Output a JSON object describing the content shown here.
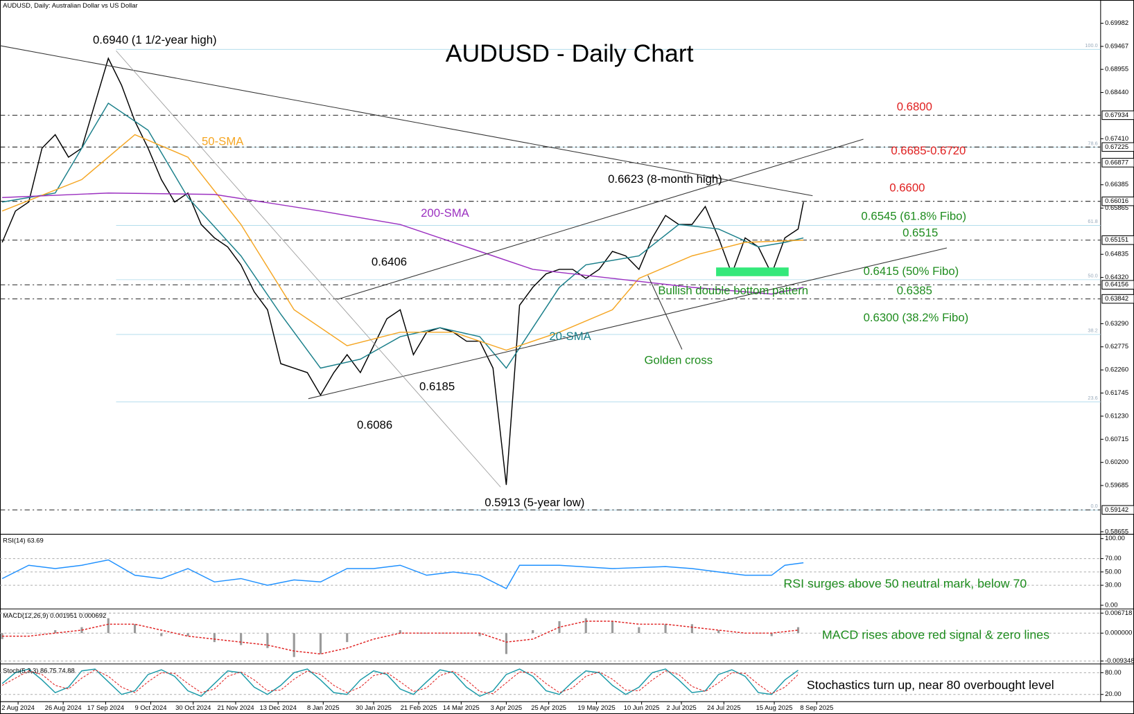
{
  "chart_data": [
    {
      "type": "line",
      "header": "AUDUSD, Daily:  Australian Dollar vs US Dollar",
      "title": "AUDUSD - Daily Chart",
      "xlim": [
        0,
        414
      ],
      "ylim": [
        0.586,
        0.705
      ],
      "xticks": [
        {
          "value": 6,
          "label": "2 Aug 2024"
        },
        {
          "value": 23,
          "label": "26 Aug 2024"
        },
        {
          "value": 39,
          "label": "17 Sep 2024"
        },
        {
          "value": 56,
          "label": "9 Oct 2024"
        },
        {
          "value": 72,
          "label": "30 Oct 2024"
        },
        {
          "value": 88,
          "label": "21 Nov 2024"
        },
        {
          "value": 104,
          "label": "13 Dec 2024"
        },
        {
          "value": 121,
          "label": "8 Jan 2025"
        },
        {
          "value": 140,
          "label": "30 Jan 2025"
        },
        {
          "value": 157,
          "label": "21 Feb 2025"
        },
        {
          "value": 173,
          "label": "14 Mar 2025"
        },
        {
          "value": 190,
          "label": "3 Apr 2025"
        },
        {
          "value": 206,
          "label": "25 Apr 2025"
        },
        {
          "value": 224,
          "label": "19 May 2025"
        },
        {
          "value": 241,
          "label": "10 Jun 2025"
        },
        {
          "value": 256,
          "label": "2 Jul 2025"
        },
        {
          "value": 272,
          "label": "24 Jul 2025"
        },
        {
          "value": 291,
          "label": "15 Aug 2025"
        },
        {
          "value": 307,
          "label": "8 Sep 2025"
        }
      ],
      "yticks": [
        0.69982,
        0.69467,
        0.68955,
        {
          "value": 0.6844,
          "label": "0.68440"
        },
        {
          "value": 0.6741,
          "label": "0.67410"
        },
        0.66385,
        0.65865,
        0.64835,
        {
          "value": 0.6432,
          "label": "0.64320"
        },
        {
          "value": 0.6329,
          "label": "0.63290"
        },
        0.62775,
        {
          "value": 0.6226,
          "label": "0.62260"
        },
        0.61745,
        {
          "value": 0.6123,
          "label": "0.61230"
        },
        0.60715,
        {
          "value": 0.602,
          "label": "0.60200"
        },
        0.59685,
        0.58655
      ],
      "levels": [
        0.67934,
        0.67225,
        0.66877,
        0.66016,
        0.65151,
        0.64156,
        0.63842,
        0.59142
      ],
      "fibo": [
        {
          "value": 0.694,
          "label": "100.0"
        },
        {
          "value": 0.6722,
          "label": "78.6"
        },
        {
          "value": 0.6548,
          "label": "61.8"
        },
        {
          "value": 0.6427,
          "label": "50.0"
        },
        {
          "value": 0.6305,
          "label": "38.2"
        },
        {
          "value": 0.6155,
          "label": "23.6"
        },
        {
          "value": 0.5914,
          "label": "0.0"
        }
      ],
      "series": [
        {
          "color": "#000000",
          "x": [
            0,
            5,
            10,
            15,
            20,
            25,
            30,
            35,
            40,
            45,
            50,
            55,
            60,
            65,
            70,
            75,
            80,
            85,
            90,
            95,
            100,
            105,
            110,
            115,
            120,
            125,
            130,
            135,
            140,
            145,
            150,
            155,
            160,
            165,
            170,
            175,
            180,
            185,
            190,
            195,
            200,
            205,
            210,
            215,
            220,
            225,
            230,
            235,
            240,
            245,
            250,
            255,
            260,
            265,
            270,
            275,
            280,
            285,
            290,
            295,
            300,
            302
          ],
          "values": [
            0.651,
            0.658,
            0.66,
            0.672,
            0.675,
            0.67,
            0.672,
            0.682,
            0.692,
            0.686,
            0.678,
            0.672,
            0.665,
            0.66,
            0.662,
            0.655,
            0.652,
            0.65,
            0.646,
            0.64,
            0.636,
            0.624,
            0.623,
            0.622,
            0.617,
            0.622,
            0.626,
            0.622,
            0.628,
            0.634,
            0.636,
            0.626,
            0.631,
            0.632,
            0.631,
            0.629,
            0.629,
            0.623,
            0.597,
            0.637,
            0.641,
            0.644,
            0.645,
            0.645,
            0.643,
            0.645,
            0.649,
            0.648,
            0.645,
            0.652,
            0.657,
            0.655,
            0.655,
            0.659,
            0.652,
            0.644,
            0.652,
            0.65,
            0.644,
            0.652,
            0.654,
            0.66
          ]
        },
        {
          "name": "20-SMA",
          "color": "#1a7f8a",
          "x": [
            0,
            20,
            40,
            55,
            70,
            90,
            105,
            120,
            135,
            150,
            165,
            180,
            190,
            200,
            210,
            220,
            240,
            255,
            270,
            285,
            295,
            302
          ],
          "values": [
            0.66,
            0.662,
            0.682,
            0.676,
            0.661,
            0.648,
            0.635,
            0.623,
            0.625,
            0.63,
            0.632,
            0.63,
            0.623,
            0.632,
            0.641,
            0.646,
            0.648,
            0.655,
            0.654,
            0.65,
            0.651,
            0.652
          ]
        },
        {
          "name": "50-SMA",
          "color": "#f5a623",
          "x": [
            0,
            30,
            50,
            70,
            90,
            110,
            130,
            150,
            170,
            190,
            210,
            230,
            240,
            260,
            280,
            302
          ],
          "values": [
            0.658,
            0.665,
            0.675,
            0.67,
            0.655,
            0.636,
            0.628,
            0.631,
            0.631,
            0.627,
            0.631,
            0.636,
            0.643,
            0.648,
            0.651,
            0.6515
          ]
        },
        {
          "name": "200-SMA",
          "color": "#9b30c0",
          "x": [
            0,
            40,
            80,
            120,
            150,
            180,
            200,
            230,
            260,
            290,
            302
          ],
          "values": [
            0.661,
            0.662,
            0.6617,
            0.658,
            0.655,
            0.649,
            0.645,
            0.643,
            0.641,
            0.6395,
            0.641
          ]
        }
      ],
      "annotations": [
        {
          "text": "0.6940 (1 1/2-year high)",
          "color": "#000000"
        },
        {
          "text": "0.6623 (8-month high)",
          "color": "#000000"
        },
        {
          "text": "0.6406",
          "color": "#000000"
        },
        {
          "text": "0.6185",
          "color": "#000000"
        },
        {
          "text": "0.6086",
          "color": "#000000"
        },
        {
          "text": "0.5913 (5-year low)",
          "color": "#000000"
        },
        {
          "text": "Golden cross",
          "color": "#1e8c1e"
        },
        {
          "text": "Bullish double bottom pattern",
          "color": "#1e8c1e"
        },
        {
          "text": "0.6800",
          "color": "#e02020"
        },
        {
          "text": "0.6685-0.6720",
          "color": "#e02020"
        },
        {
          "text": "0.6600",
          "color": "#e02020"
        },
        {
          "text": "0.6545 (61.8% Fibo)",
          "color": "#1e8c1e"
        },
        {
          "text": "0.6515",
          "color": "#1e8c1e"
        },
        {
          "text": "0.6415 (50% Fibo)",
          "color": "#1e8c1e"
        },
        {
          "text": "0.6385",
          "color": "#1e8c1e"
        },
        {
          "text": "0.6300 (38.2% Fibo)",
          "color": "#1e8c1e"
        }
      ]
    },
    {
      "type": "line",
      "label": "RSI(14) 63.69",
      "ylim": [
        0,
        100
      ],
      "yticks": [
        {
          "value": 100,
          "label": "100.00"
        },
        {
          "value": 70,
          "label": "70.00"
        },
        {
          "value": 50,
          "label": "50.00"
        },
        {
          "value": 30,
          "label": "30.00"
        },
        {
          "value": 0,
          "label": "0.00"
        }
      ],
      "series": [
        {
          "color": "#1e90ff",
          "x": [
            0,
            10,
            20,
            30,
            40,
            50,
            60,
            70,
            80,
            90,
            100,
            110,
            120,
            130,
            140,
            150,
            160,
            170,
            180,
            190,
            195,
            210,
            230,
            250,
            260,
            270,
            280,
            290,
            295,
            302
          ],
          "values": [
            40,
            60,
            55,
            60,
            68,
            45,
            40,
            55,
            35,
            40,
            30,
            38,
            35,
            55,
            55,
            60,
            45,
            50,
            45,
            25,
            60,
            60,
            55,
            58,
            55,
            50,
            45,
            45,
            60,
            63.69
          ]
        }
      ],
      "annotation": "RSI surges above 50 neutral mark, below 70"
    },
    {
      "type": "macd",
      "label": "MACD(12,26,9) 0.001951 0.000692",
      "ylim": [
        -0.0101,
        0.0074
      ],
      "yticks": [
        0.006718,
        {
          "value": 0,
          "label": "0.000000"
        },
        -0.009348
      ],
      "series": [
        {
          "color": "#9a9a9a",
          "x": [
            0,
            10,
            20,
            30,
            40,
            50,
            60,
            70,
            80,
            90,
            100,
            110,
            120,
            130,
            140,
            150,
            160,
            170,
            180,
            190,
            200,
            210,
            220,
            230,
            240,
            250,
            260,
            270,
            280,
            290,
            300
          ],
          "values": [
            -0.002,
            0,
            0.001,
            0.002,
            0.005,
            0.003,
            -0.001,
            -0.001,
            -0.003,
            -0.004,
            -0.005,
            -0.008,
            -0.007,
            -0.003,
            0,
            0.001,
            0,
            0,
            -0.001,
            -0.007,
            0.001,
            0.004,
            0.005,
            0.004,
            0.002,
            0.003,
            0.003,
            0.001,
            0,
            -0.001,
            0.002
          ]
        },
        {
          "color": "#e02020",
          "x": [
            0,
            10,
            20,
            30,
            40,
            50,
            60,
            70,
            80,
            90,
            100,
            110,
            120,
            130,
            140,
            150,
            160,
            170,
            180,
            190,
            200,
            210,
            220,
            230,
            240,
            250,
            260,
            270,
            280,
            290,
            300
          ],
          "values": [
            -0.001,
            -0.001,
            0,
            0.001,
            0.003,
            0.003,
            0.001,
            -0.001,
            -0.002,
            -0.003,
            -0.004,
            -0.006,
            -0.007,
            -0.005,
            -0.002,
            0,
            0,
            0,
            0,
            -0.003,
            -0.002,
            0.002,
            0.004,
            0.004,
            0.003,
            0.003,
            0.002,
            0.001,
            0,
            0,
            0.001
          ]
        }
      ],
      "annotation": "MACD rises above red signal & zero lines"
    },
    {
      "type": "stochastic",
      "label": "Stoch(5,3,3) 86.75 74.88",
      "ylim": [
        0,
        100
      ],
      "yticks": [
        {
          "value": 80,
          "label": "80.00"
        },
        {
          "value": 20,
          "label": "20.00"
        }
      ],
      "series": [
        {
          "color": "#1a9aa8",
          "x": [
            0,
            5,
            10,
            15,
            20,
            25,
            30,
            35,
            40,
            45,
            50,
            55,
            60,
            65,
            70,
            75,
            80,
            85,
            90,
            95,
            100,
            105,
            110,
            115,
            120,
            125,
            130,
            135,
            140,
            145,
            150,
            155,
            160,
            165,
            170,
            175,
            180,
            185,
            190,
            195,
            200,
            205,
            210,
            215,
            220,
            225,
            230,
            235,
            240,
            245,
            250,
            255,
            260,
            265,
            270,
            275,
            280,
            285,
            290,
            295,
            300
          ],
          "values": [
            50,
            80,
            90,
            60,
            25,
            40,
            85,
            90,
            55,
            20,
            30,
            75,
            88,
            70,
            30,
            15,
            50,
            85,
            80,
            40,
            20,
            45,
            80,
            90,
            60,
            25,
            20,
            60,
            85,
            75,
            35,
            20,
            55,
            88,
            80,
            40,
            15,
            30,
            75,
            90,
            70,
            30,
            20,
            55,
            85,
            80,
            45,
            20,
            40,
            80,
            90,
            60,
            25,
            30,
            75,
            88,
            70,
            25,
            20,
            60,
            86.75
          ]
        },
        {
          "color": "#e02020",
          "x": [
            0,
            5,
            10,
            15,
            20,
            25,
            30,
            35,
            40,
            45,
            50,
            55,
            60,
            65,
            70,
            75,
            80,
            85,
            90,
            95,
            100,
            105,
            110,
            115,
            120,
            125,
            130,
            135,
            140,
            145,
            150,
            155,
            160,
            165,
            170,
            175,
            180,
            185,
            190,
            195,
            200,
            205,
            210,
            215,
            220,
            225,
            230,
            235,
            240,
            245,
            250,
            255,
            260,
            265,
            270,
            275,
            280,
            285,
            290,
            295,
            300
          ],
          "values": [
            45,
            65,
            85,
            75,
            45,
            35,
            65,
            88,
            70,
            40,
            25,
            55,
            80,
            78,
            50,
            25,
            35,
            70,
            82,
            60,
            30,
            32,
            62,
            85,
            75,
            45,
            25,
            40,
            72,
            80,
            55,
            28,
            38,
            72,
            84,
            60,
            28,
            22,
            52,
            82,
            80,
            50,
            25,
            38,
            70,
            82,
            62,
            32,
            30,
            60,
            85,
            75,
            42,
            28,
            52,
            80,
            78,
            48,
            22,
            40,
            74.88
          ]
        }
      ],
      "annotation": "Stochastics turn up, near 80 overbought level"
    }
  ]
}
